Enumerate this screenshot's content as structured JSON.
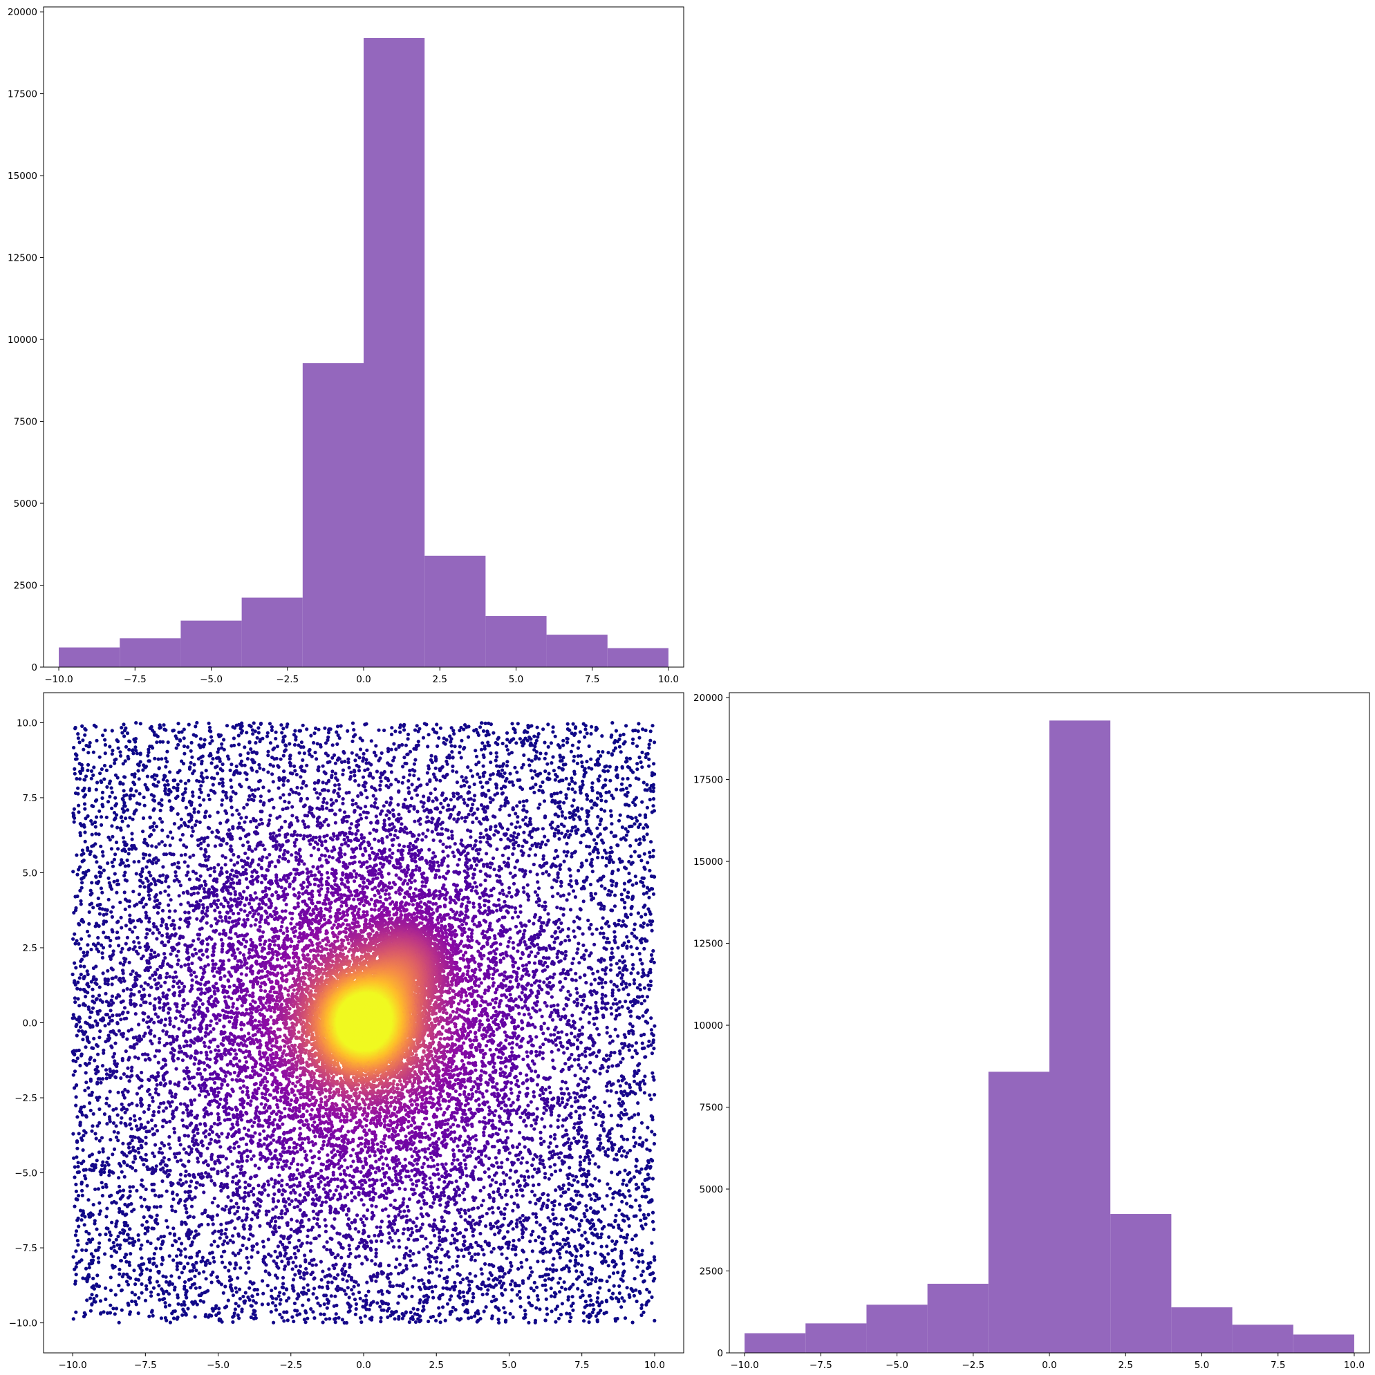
{
  "chart_data": [
    {
      "type": "bar",
      "bin_edges": [
        -10,
        -8,
        -6,
        -4,
        -2,
        0,
        2,
        4,
        6,
        8,
        10
      ],
      "values": [
        600,
        880,
        1420,
        2120,
        9280,
        19200,
        3400,
        1560,
        990,
        580
      ],
      "xlim": [
        -10.5,
        10.5
      ],
      "ylim": [
        0,
        20150
      ],
      "xticks": [
        -10,
        -7.5,
        -5,
        -2.5,
        0,
        2.5,
        5,
        7.5,
        10
      ],
      "xtick_labels": [
        "−10.0",
        "−7.5",
        "−5.0",
        "−2.5",
        "0.0",
        "2.5",
        "5.0",
        "7.5",
        "10.0"
      ],
      "yticks": [
        0,
        2500,
        5000,
        7500,
        10000,
        12500,
        15000,
        17500,
        20000
      ],
      "ytick_labels": [
        "0",
        "2500",
        "5000",
        "7500",
        "10000",
        "12500",
        "15000",
        "17500",
        "20000"
      ],
      "color": "#9467bd",
      "grid": false
    },
    {
      "type": "scatter",
      "xlim": [
        -11,
        11
      ],
      "ylim": [
        -11,
        11
      ],
      "xticks": [
        -10,
        -7.5,
        -5,
        -2.5,
        0,
        2.5,
        5,
        7.5,
        10
      ],
      "xtick_labels": [
        "−10.0",
        "−7.5",
        "−5.0",
        "−2.5",
        "0.0",
        "2.5",
        "5.0",
        "7.5",
        "10.0"
      ],
      "yticks": [
        -10,
        -7.5,
        -5,
        -2.5,
        0,
        2.5,
        5,
        7.5,
        10
      ],
      "ytick_labels": [
        "−10.0",
        "−7.5",
        "−5.0",
        "−2.5",
        "0.0",
        "2.5",
        "5.0",
        "7.5",
        "10.0"
      ],
      "colormap": "plasma",
      "components": [
        {
          "kind": "uniform",
          "x_range": [
            -10,
            10
          ],
          "y_range": [
            -10,
            10
          ],
          "count": 10000
        },
        {
          "kind": "gaussian",
          "center": [
            0,
            0
          ],
          "sigma": 3.0,
          "count": 6000
        },
        {
          "kind": "gaussian",
          "center": [
            1.5,
            2.0
          ],
          "sigma": 0.7,
          "count": 2500
        },
        {
          "kind": "gaussian",
          "center": [
            0,
            0
          ],
          "sigma": 0.8,
          "count": 8000
        }
      ],
      "point_size": 2.6,
      "grid": false
    },
    {
      "type": "bar",
      "bin_edges": [
        -10,
        -8,
        -6,
        -4,
        -2,
        0,
        2,
        4,
        6,
        8,
        10
      ],
      "values": [
        600,
        900,
        1470,
        2110,
        8580,
        19300,
        4240,
        1390,
        860,
        560
      ],
      "xlim": [
        -10.5,
        10.5
      ],
      "ylim": [
        0,
        20150
      ],
      "xticks": [
        -10,
        -7.5,
        -5,
        -2.5,
        0,
        2.5,
        5,
        7.5,
        10
      ],
      "xtick_labels": [
        "−10.0",
        "−7.5",
        "−5.0",
        "−2.5",
        "0.0",
        "2.5",
        "5.0",
        "7.5",
        "10.0"
      ],
      "yticks": [
        0,
        2500,
        5000,
        7500,
        10000,
        12500,
        15000,
        17500,
        20000
      ],
      "ytick_labels": [
        "0",
        "2500",
        "5000",
        "7500",
        "10000",
        "12500",
        "15000",
        "17500",
        "20000"
      ],
      "color": "#9467bd",
      "grid": false
    }
  ]
}
